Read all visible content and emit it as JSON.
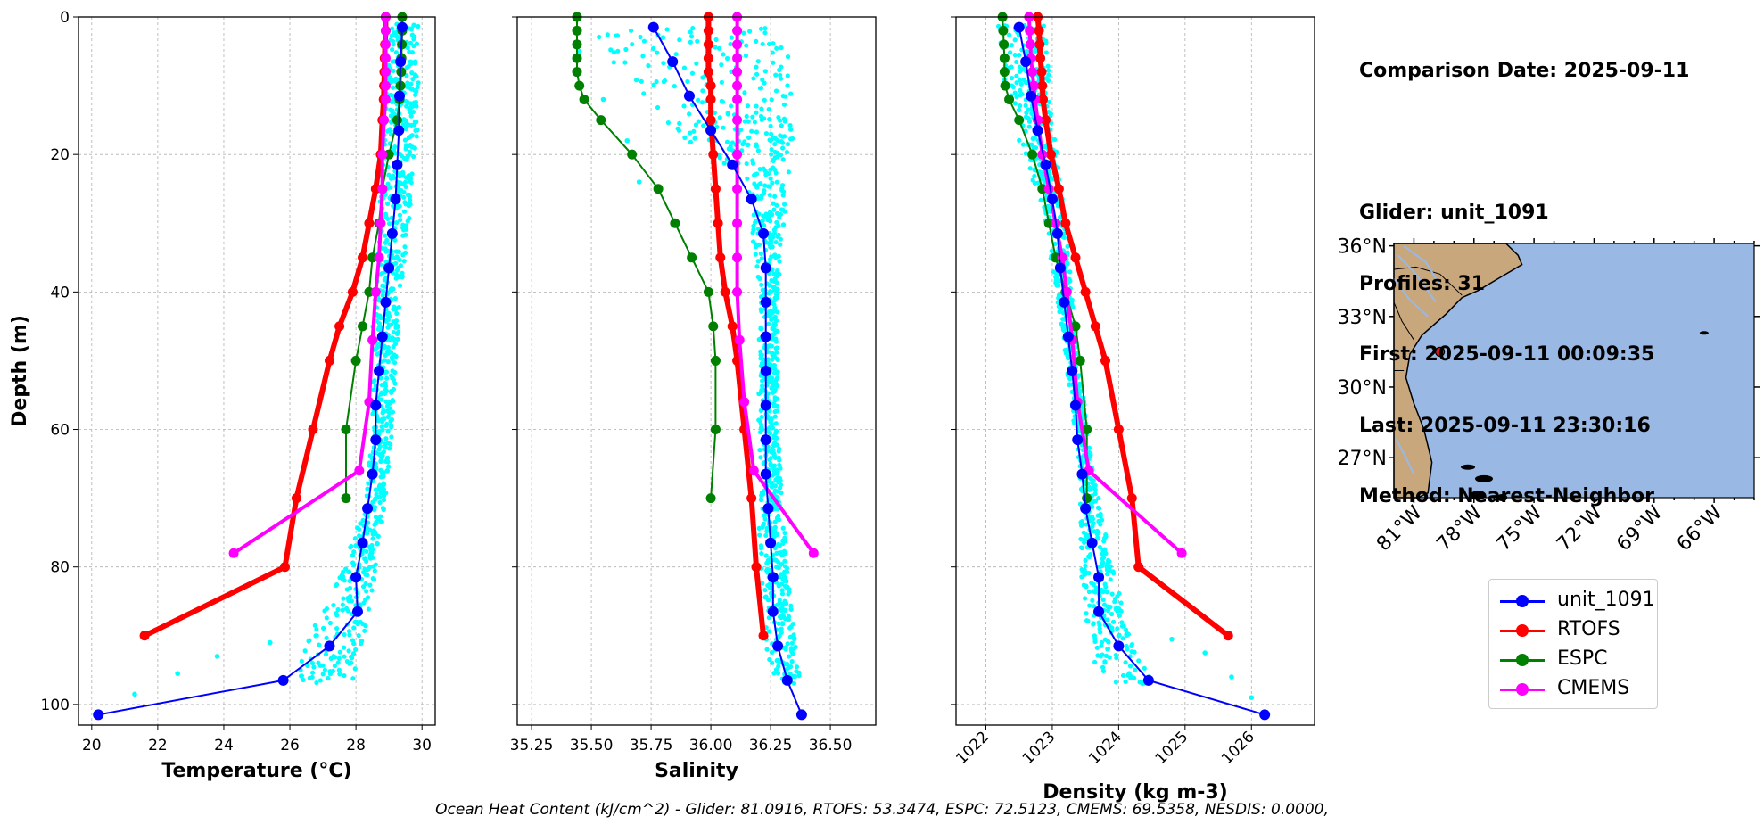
{
  "colors": {
    "glider": "#0000ff",
    "rtofs": "#ff0000",
    "espc": "#008000",
    "cmems": "#ff00ff",
    "scatter": "#00ffff",
    "ocean": "#9ab8e4",
    "land": "#c9a77c"
  },
  "info": {
    "comparison_date": "Comparison Date: 2025-09-11",
    "glider": "Glider: unit_1091",
    "profiles": "Profiles: 31",
    "first": "First: 2025-09-11 00:09:35",
    "last": "Last: 2025-09-11 23:30:16",
    "method": "Method: Nearest-Neighbor"
  },
  "legend": [
    {
      "label": "unit_1091",
      "color": "#0000ff"
    },
    {
      "label": "RTOFS",
      "color": "#ff0000"
    },
    {
      "label": "ESPC",
      "color": "#008000"
    },
    {
      "label": "CMEMS",
      "color": "#ff00ff"
    }
  ],
  "ohc_text": "Ocean Heat Content (kJ/cm^2) - Glider: 81.0916,  RTOFS: 53.3474,  ESPC: 72.5123,  CMEMS: 69.5358,  NESDIS: 0.0000,",
  "shared_y": {
    "label": "Depth (m)",
    "ylim": [
      103,
      0
    ],
    "ticks": [
      0,
      20,
      40,
      60,
      80,
      100
    ]
  },
  "chart_data": [
    {
      "type": "line",
      "xlabel": "Temperature (°C)",
      "xlim": [
        19.6,
        30.4
      ],
      "xticks": [
        20,
        22,
        24,
        26,
        28,
        30
      ],
      "xtick_labels": [
        "20",
        "22",
        "24",
        "26",
        "28",
        "30"
      ],
      "xtick_rotate": false,
      "scatter_band": [
        {
          "depth": 2,
          "min": 28.8,
          "max": 29.9
        },
        {
          "depth": 15,
          "min": 28.8,
          "max": 29.9
        },
        {
          "depth": 30,
          "min": 28.7,
          "max": 29.6
        },
        {
          "depth": 45,
          "min": 28.5,
          "max": 29.3
        },
        {
          "depth": 60,
          "min": 28.5,
          "max": 29.1
        },
        {
          "depth": 70,
          "min": 28.3,
          "max": 28.9
        },
        {
          "depth": 80,
          "min": 27.6,
          "max": 28.6
        },
        {
          "depth": 88,
          "min": 26.8,
          "max": 28.4
        },
        {
          "depth": 94,
          "min": 26.3,
          "max": 28.0
        }
      ],
      "scatter_outliers": [
        {
          "x": 25.4,
          "y": 91
        },
        {
          "x": 23.8,
          "y": 93
        },
        {
          "x": 22.6,
          "y": 95.5
        },
        {
          "x": 21.3,
          "y": 98.5
        }
      ],
      "series": [
        {
          "name": "RTOFS",
          "color": "#ff0000",
          "width": 6,
          "marker_r": 5.5,
          "depth": [
            0,
            2,
            4,
            6,
            8,
            10,
            12,
            15,
            20,
            25,
            30,
            35,
            40,
            45,
            50,
            60,
            70,
            80,
            90
          ],
          "values": [
            28.9,
            28.9,
            28.88,
            28.87,
            28.86,
            28.85,
            28.84,
            28.8,
            28.75,
            28.6,
            28.4,
            28.2,
            27.9,
            27.5,
            27.2,
            26.7,
            26.2,
            25.85,
            21.6
          ]
        },
        {
          "name": "ESPC",
          "color": "#008000",
          "width": 2,
          "marker_r": 5.5,
          "depth": [
            0,
            2,
            4,
            6,
            8,
            10,
            12,
            15,
            20,
            25,
            30,
            35,
            40,
            45,
            50,
            60,
            70
          ],
          "values": [
            29.4,
            29.4,
            29.39,
            29.38,
            29.37,
            29.35,
            29.32,
            29.25,
            29.0,
            28.8,
            28.7,
            28.5,
            28.4,
            28.2,
            28.0,
            27.7,
            27.7
          ]
        },
        {
          "name": "CMEMS",
          "color": "#ff00ff",
          "width": 4,
          "marker_r": 5.5,
          "depth": [
            0,
            2,
            4,
            6,
            8,
            10,
            12,
            15,
            20,
            25,
            30,
            35,
            40,
            47,
            56,
            66,
            78
          ],
          "values": [
            28.9,
            28.9,
            28.9,
            28.9,
            28.9,
            28.9,
            28.9,
            28.85,
            28.8,
            28.8,
            28.75,
            28.7,
            28.6,
            28.5,
            28.4,
            28.1,
            24.3
          ]
        },
        {
          "name": "unit_1091",
          "color": "#0000ff",
          "width": 2,
          "marker_r": 6,
          "depth": [
            1.5,
            6.5,
            11.5,
            16.5,
            21.5,
            26.5,
            31.5,
            36.5,
            41.5,
            46.5,
            51.5,
            56.5,
            61.5,
            66.5,
            71.5,
            76.5,
            81.5,
            86.5,
            91.5,
            96.5,
            101.5
          ],
          "values": [
            29.4,
            29.35,
            29.32,
            29.3,
            29.25,
            29.2,
            29.1,
            29.0,
            28.9,
            28.8,
            28.7,
            28.6,
            28.6,
            28.5,
            28.35,
            28.2,
            28.0,
            28.05,
            27.2,
            25.8,
            20.2
          ]
        }
      ]
    },
    {
      "type": "line",
      "xlabel": "Salinity",
      "xlim": [
        35.19,
        36.69
      ],
      "xticks": [
        35.25,
        35.5,
        35.75,
        36.0,
        36.25,
        36.5
      ],
      "xtick_labels": [
        "35.25",
        "35.50",
        "35.75",
        "36.00",
        "36.25",
        "36.50"
      ],
      "xtick_rotate": false,
      "scatter_band": [
        {
          "depth": 2,
          "min": 35.5,
          "max": 36.3
        },
        {
          "depth": 8,
          "min": 35.6,
          "max": 36.35
        },
        {
          "depth": 15,
          "min": 35.8,
          "max": 36.35
        },
        {
          "depth": 25,
          "min": 36.15,
          "max": 36.32
        },
        {
          "depth": 40,
          "min": 36.2,
          "max": 36.28
        },
        {
          "depth": 60,
          "min": 36.2,
          "max": 36.28
        },
        {
          "depth": 80,
          "min": 36.2,
          "max": 36.32
        },
        {
          "depth": 90,
          "min": 36.22,
          "max": 36.35
        },
        {
          "depth": 97,
          "min": 36.25,
          "max": 36.38
        }
      ],
      "scatter_outliers": [
        {
          "x": 35.45,
          "y": 5
        },
        {
          "x": 35.55,
          "y": 12
        },
        {
          "x": 35.65,
          "y": 18
        },
        {
          "x": 35.7,
          "y": 24
        },
        {
          "x": 35.8,
          "y": 3
        }
      ],
      "series": [
        {
          "name": "RTOFS",
          "color": "#ff0000",
          "width": 6,
          "marker_r": 5.5,
          "depth": [
            0,
            2,
            4,
            6,
            8,
            10,
            12,
            15,
            20,
            25,
            30,
            35,
            40,
            45,
            50,
            60,
            70,
            80,
            90
          ],
          "values": [
            35.99,
            35.99,
            35.99,
            35.99,
            35.99,
            36.0,
            36.0,
            36.0,
            36.01,
            36.02,
            36.03,
            36.04,
            36.06,
            36.09,
            36.11,
            36.14,
            36.17,
            36.19,
            36.22
          ]
        },
        {
          "name": "ESPC",
          "color": "#008000",
          "width": 2,
          "marker_r": 5.5,
          "depth": [
            0,
            2,
            4,
            6,
            8,
            10,
            12,
            15,
            20,
            25,
            30,
            35,
            40,
            45,
            50,
            60,
            70
          ],
          "values": [
            35.44,
            35.44,
            35.44,
            35.44,
            35.44,
            35.45,
            35.47,
            35.54,
            35.67,
            35.78,
            35.85,
            35.92,
            35.99,
            36.01,
            36.02,
            36.02,
            36.0
          ]
        },
        {
          "name": "CMEMS",
          "color": "#ff00ff",
          "width": 4,
          "marker_r": 5.5,
          "depth": [
            0,
            2,
            4,
            6,
            8,
            10,
            12,
            15,
            20,
            25,
            30,
            35,
            40,
            47,
            56,
            66,
            78
          ],
          "values": [
            36.11,
            36.11,
            36.11,
            36.11,
            36.11,
            36.11,
            36.11,
            36.11,
            36.11,
            36.11,
            36.11,
            36.11,
            36.11,
            36.12,
            36.14,
            36.18,
            36.43
          ]
        },
        {
          "name": "unit_1091",
          "color": "#0000ff",
          "width": 2,
          "marker_r": 6,
          "depth": [
            1.5,
            6.5,
            11.5,
            16.5,
            21.5,
            26.5,
            31.5,
            36.5,
            41.5,
            46.5,
            51.5,
            56.5,
            61.5,
            66.5,
            71.5,
            76.5,
            81.5,
            86.5,
            91.5,
            96.5,
            101.5
          ],
          "values": [
            35.76,
            35.84,
            35.91,
            36.0,
            36.09,
            36.17,
            36.22,
            36.23,
            36.23,
            36.23,
            36.23,
            36.23,
            36.23,
            36.23,
            36.24,
            36.25,
            36.26,
            36.26,
            36.28,
            36.32,
            36.38
          ]
        }
      ]
    },
    {
      "type": "line",
      "xlabel": "Density (kg m-3)",
      "xlim": [
        1021.55,
        1026.95
      ],
      "xticks": [
        1022,
        1023,
        1024,
        1025,
        1026
      ],
      "xtick_labels": [
        "1022",
        "1023",
        "1024",
        "1025",
        "1026"
      ],
      "xtick_rotate": true,
      "scatter_band": [
        {
          "depth": 2,
          "min": 1022.1,
          "max": 1022.9
        },
        {
          "depth": 15,
          "min": 1022.4,
          "max": 1023.0
        },
        {
          "depth": 30,
          "min": 1022.9,
          "max": 1023.2
        },
        {
          "depth": 50,
          "min": 1023.2,
          "max": 1023.4
        },
        {
          "depth": 65,
          "min": 1023.4,
          "max": 1023.6
        },
        {
          "depth": 80,
          "min": 1023.4,
          "max": 1023.9
        },
        {
          "depth": 90,
          "min": 1023.5,
          "max": 1024.2
        },
        {
          "depth": 96,
          "min": 1023.7,
          "max": 1024.5
        }
      ],
      "scatter_outliers": [
        {
          "x": 1024.8,
          "y": 90.5
        },
        {
          "x": 1025.3,
          "y": 92.5
        },
        {
          "x": 1025.7,
          "y": 96
        },
        {
          "x": 1026.0,
          "y": 99
        }
      ],
      "series": [
        {
          "name": "RTOFS",
          "color": "#ff0000",
          "width": 6,
          "marker_r": 5.5,
          "depth": [
            0,
            2,
            4,
            6,
            8,
            10,
            12,
            15,
            20,
            25,
            30,
            35,
            40,
            45,
            50,
            60,
            70,
            80,
            90
          ],
          "values": [
            1022.78,
            1022.8,
            1022.81,
            1022.82,
            1022.84,
            1022.85,
            1022.86,
            1022.9,
            1022.98,
            1023.1,
            1023.2,
            1023.35,
            1023.5,
            1023.65,
            1023.8,
            1024.0,
            1024.2,
            1024.3,
            1025.65
          ]
        },
        {
          "name": "ESPC",
          "color": "#008000",
          "width": 2,
          "marker_r": 5.5,
          "depth": [
            0,
            2,
            4,
            6,
            8,
            10,
            12,
            15,
            20,
            25,
            30,
            35,
            40,
            45,
            50,
            60,
            70
          ],
          "values": [
            1022.25,
            1022.26,
            1022.27,
            1022.28,
            1022.28,
            1022.29,
            1022.35,
            1022.5,
            1022.7,
            1022.85,
            1022.95,
            1023.05,
            1023.2,
            1023.35,
            1023.42,
            1023.52,
            1023.52
          ]
        },
        {
          "name": "CMEMS",
          "color": "#ff00ff",
          "width": 4,
          "marker_r": 5.5,
          "depth": [
            0,
            2,
            4,
            6,
            8,
            10,
            12,
            15,
            20,
            25,
            30,
            35,
            40,
            47,
            56,
            66,
            78
          ],
          "values": [
            1022.65,
            1022.66,
            1022.67,
            1022.68,
            1022.7,
            1022.72,
            1022.74,
            1022.78,
            1022.85,
            1022.95,
            1023.05,
            1023.15,
            1023.22,
            1023.3,
            1023.38,
            1023.55,
            1024.95
          ]
        },
        {
          "name": "unit_1091",
          "color": "#0000ff",
          "width": 2,
          "marker_r": 6,
          "depth": [
            1.5,
            6.5,
            11.5,
            16.5,
            21.5,
            26.5,
            31.5,
            36.5,
            41.5,
            46.5,
            51.5,
            56.5,
            61.5,
            66.5,
            71.5,
            76.5,
            81.5,
            86.5,
            91.5,
            96.5,
            101.5
          ],
          "values": [
            1022.5,
            1022.6,
            1022.68,
            1022.78,
            1022.9,
            1023.0,
            1023.08,
            1023.12,
            1023.18,
            1023.24,
            1023.3,
            1023.35,
            1023.38,
            1023.45,
            1023.5,
            1023.6,
            1023.7,
            1023.7,
            1024.0,
            1024.45,
            1026.2
          ]
        }
      ]
    }
  ],
  "map": {
    "lat_labels": [
      "36°N",
      "33°N",
      "30°N",
      "27°N"
    ],
    "lat_values": [
      36,
      33,
      30,
      27
    ],
    "lon_labels": [
      "81°W",
      "78°W",
      "75°W",
      "72°W",
      "69°W",
      "66°W"
    ],
    "lon_values": [
      -81,
      -78,
      -75,
      -72,
      -69,
      -66
    ],
    "lon_range": [
      -82,
      -64
    ],
    "lat_range": [
      25.3,
      36.1
    ],
    "glider_position": {
      "lon": -79.7,
      "lat": 31.5
    }
  }
}
